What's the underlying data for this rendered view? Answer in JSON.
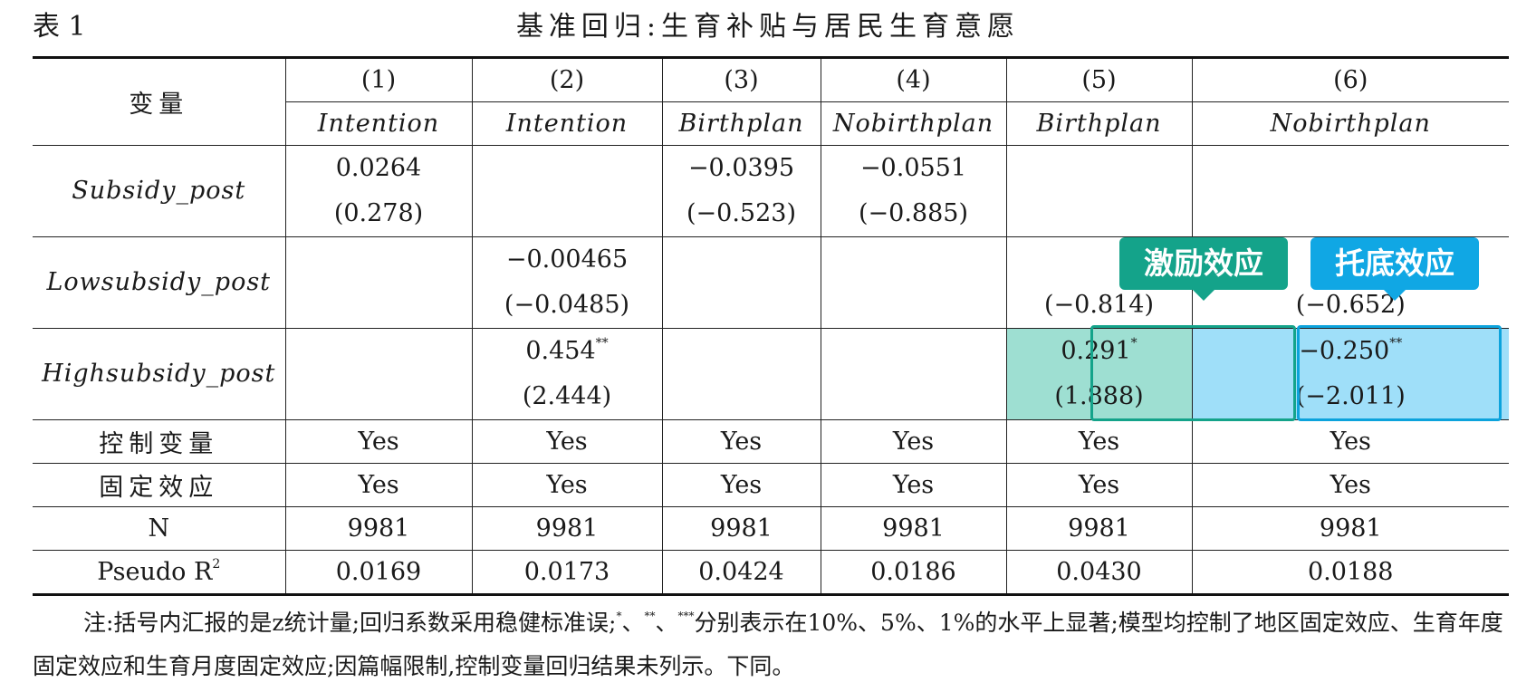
{
  "caption": {
    "label": "表 1",
    "title": "基准回归:生育补贴与居民生育意愿"
  },
  "table": {
    "var_header": "变量",
    "columns": [
      {
        "num": "(1)",
        "dep": "Intention"
      },
      {
        "num": "(2)",
        "dep": "Intention"
      },
      {
        "num": "(3)",
        "dep": "Birthplan"
      },
      {
        "num": "(4)",
        "dep": "Nobirthplan"
      },
      {
        "num": "(5)",
        "dep": "Birthplan"
      },
      {
        "num": "(6)",
        "dep": "Nobirthplan"
      }
    ],
    "rows": [
      {
        "name": "Subsidy_post",
        "cells": [
          {
            "coef": "0.0264",
            "stars": "",
            "t": "(0.278)"
          },
          {
            "coef": "",
            "stars": "",
            "t": ""
          },
          {
            "coef": "−0.0395",
            "stars": "",
            "t": "(−0.523)"
          },
          {
            "coef": "−0.0551",
            "stars": "",
            "t": "(−0.885)"
          },
          {
            "coef": "",
            "stars": "",
            "t": ""
          },
          {
            "coef": "",
            "stars": "",
            "t": ""
          }
        ]
      },
      {
        "name": "Lowsubsidy_post",
        "cells": [
          {
            "coef": "",
            "stars": "",
            "t": ""
          },
          {
            "coef": "−0.00465",
            "stars": "",
            "t": "(−0.0485)"
          },
          {
            "coef": "",
            "stars": "",
            "t": ""
          },
          {
            "coef": "",
            "stars": "",
            "t": ""
          },
          {
            "coef": "",
            "stars": "",
            "t": "(−0.814)"
          },
          {
            "coef": "",
            "stars": "",
            "t": "(−0.652)"
          }
        ]
      },
      {
        "name": "Highsubsidy_post",
        "cells": [
          {
            "coef": "",
            "stars": "",
            "t": ""
          },
          {
            "coef": "0.454",
            "stars": "**",
            "t": "(2.444)"
          },
          {
            "coef": "",
            "stars": "",
            "t": ""
          },
          {
            "coef": "",
            "stars": "",
            "t": ""
          },
          {
            "coef": "0.291",
            "stars": "*",
            "t": "(1.888)"
          },
          {
            "coef": "−0.250",
            "stars": "**",
            "t": "(−2.011)"
          }
        ]
      }
    ],
    "stats": [
      {
        "name": "控制变量",
        "values": [
          "Yes",
          "Yes",
          "Yes",
          "Yes",
          "Yes",
          "Yes"
        ]
      },
      {
        "name": "固定效应",
        "values": [
          "Yes",
          "Yes",
          "Yes",
          "Yes",
          "Yes",
          "Yes"
        ]
      },
      {
        "name": "N",
        "values": [
          "9981",
          "9981",
          "9981",
          "9981",
          "9981",
          "9981"
        ]
      },
      {
        "name": "Pseudo R",
        "sup": "2",
        "values": [
          "0.0169",
          "0.0173",
          "0.0424",
          "0.0186",
          "0.0430",
          "0.0188"
        ]
      }
    ]
  },
  "annotations": {
    "green": {
      "label": "激励效应",
      "color": "#14a38a"
    },
    "blue": {
      "label": "托底效应",
      "color": "#10a7e4"
    }
  },
  "note": {
    "prefix": "注:括号内汇报的是z统计量;回归系数采用稳健标准误;",
    "s1": "*",
    "sep1": "、",
    "s2": "**",
    "sep2": "、",
    "s3": "***",
    "suffix": "分别表示在10%、5%、1%的水平上显著;模型均控制了地区固定效应、生育年度固定效应和生育月度固定效应;因篇幅限制,控制变量回归结果未列示。下同。"
  }
}
